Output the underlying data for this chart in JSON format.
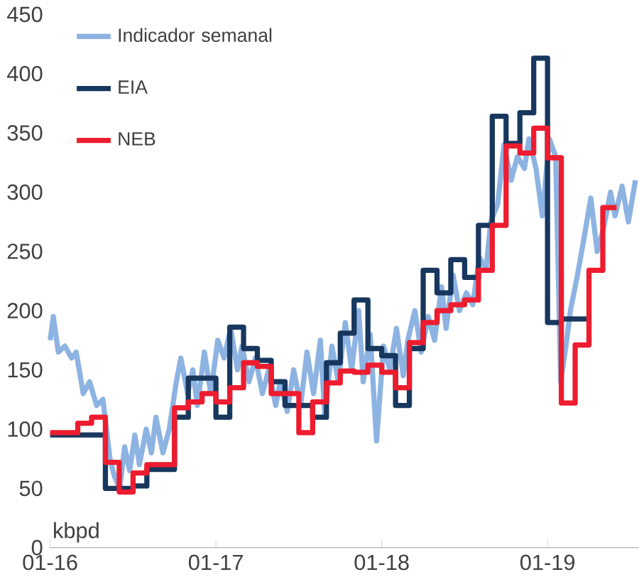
{
  "chart_data": {
    "type": "line",
    "ylim": [
      0,
      450
    ],
    "yticks": [
      0,
      50,
      100,
      150,
      200,
      250,
      300,
      350,
      400,
      450
    ],
    "xlim": [
      "2016-01-01",
      "2019-07-19"
    ],
    "xticks": [
      {
        "value": "2016-01",
        "label": "01-16"
      },
      {
        "value": "2017-01",
        "label": "01-17"
      },
      {
        "value": "2018-01",
        "label": "01-18"
      },
      {
        "value": "2019-01",
        "label": "01-19"
      }
    ],
    "legend": "top left",
    "annotations": [
      "kbpd"
    ],
    "series": [
      {
        "name": "Indicador semanal",
        "color": "#8db3e2",
        "x": [
          "2016-01-01",
          "2016-01-08",
          "2016-01-19",
          "2016-02-03",
          "2016-02-18",
          "2016-02-28",
          "2016-03-13",
          "2016-03-27",
          "2016-04-12",
          "2016-04-26",
          "2016-05-11",
          "2016-05-21",
          "2016-06-02",
          "2016-06-13",
          "2016-06-24",
          "2016-07-05",
          "2016-07-15",
          "2016-07-30",
          "2016-08-11",
          "2016-08-21",
          "2016-09-06",
          "2016-09-20",
          "2016-10-05",
          "2016-10-15",
          "2016-10-30",
          "2016-11-11",
          "2016-11-21",
          "2016-12-06",
          "2016-12-20",
          "2017-01-05",
          "2017-01-19",
          "2017-02-03",
          "2017-02-18",
          "2017-02-28",
          "2017-03-13",
          "2017-03-27",
          "2017-04-12",
          "2017-04-26",
          "2017-05-11",
          "2017-05-21",
          "2017-06-06",
          "2017-06-20",
          "2017-07-05",
          "2017-07-19",
          "2017-08-03",
          "2017-08-18",
          "2017-08-28",
          "2017-09-13",
          "2017-09-27",
          "2017-10-12",
          "2017-10-26",
          "2017-11-11",
          "2017-11-21",
          "2017-12-06",
          "2017-12-20",
          "2018-01-05",
          "2018-01-19",
          "2018-02-03",
          "2018-02-18",
          "2018-02-28",
          "2018-03-13",
          "2018-03-27",
          "2018-04-12",
          "2018-04-26",
          "2018-05-11",
          "2018-05-21",
          "2018-06-06",
          "2018-06-20",
          "2018-07-05",
          "2018-07-19",
          "2018-08-03",
          "2018-08-18",
          "2018-08-28",
          "2018-09-13",
          "2018-09-27",
          "2018-10-12",
          "2018-10-26",
          "2018-11-11",
          "2018-11-21",
          "2018-12-06",
          "2018-12-20",
          "2019-01-05",
          "2019-01-19",
          "2019-01-30",
          "2019-02-11",
          "2019-02-21",
          "2019-03-06",
          "2019-03-20",
          "2019-04-05",
          "2019-04-19",
          "2019-05-03",
          "2019-05-18",
          "2019-05-28",
          "2019-06-13",
          "2019-06-27",
          "2019-07-12"
        ],
        "values": [
          175,
          195,
          165,
          170,
          160,
          165,
          130,
          140,
          120,
          125,
          75,
          60,
          50,
          85,
          65,
          95,
          70,
          100,
          80,
          110,
          80,
          100,
          140,
          160,
          130,
          150,
          120,
          165,
          130,
          175,
          160,
          185,
          150,
          170,
          140,
          160,
          130,
          150,
          120,
          140,
          115,
          150,
          120,
          165,
          130,
          175,
          110,
          170,
          140,
          190,
          150,
          200,
          140,
          180,
          90,
          170,
          150,
          185,
          145,
          175,
          200,
          165,
          195,
          175,
          220,
          185,
          230,
          200,
          215,
          205,
          245,
          235,
          275,
          290,
          340,
          310,
          330,
          320,
          345,
          320,
          280,
          345,
          330,
          140,
          170,
          200,
          230,
          260,
          295,
          250,
          270,
          300,
          280,
          305,
          275,
          310
        ]
      },
      {
        "name": "EIA",
        "type": "step",
        "color": "#17375e",
        "x": [
          "2016-01",
          "2016-05",
          "2016-07",
          "2016-08",
          "2016-10",
          "2016-11",
          "2017-01",
          "2017-02",
          "2017-03",
          "2017-04",
          "2017-05",
          "2017-06",
          "2017-08",
          "2017-09",
          "2017-10",
          "2017-11",
          "2017-12",
          "2018-01",
          "2018-02",
          "2018-03",
          "2018-04",
          "2018-05",
          "2018-06",
          "2018-07",
          "2018-08",
          "2018-09",
          "2018-10",
          "2018-11",
          "2018-12",
          "2019-01",
          "2019-02",
          "2019-04"
        ],
        "values": [
          95,
          50,
          52,
          66,
          110,
          143,
          110,
          186,
          168,
          158,
          140,
          120,
          110,
          156,
          181,
          209,
          168,
          162,
          120,
          168,
          234,
          215,
          243,
          228,
          272,
          364,
          341,
          367,
          413,
          190,
          193,
          193
        ]
      },
      {
        "name": "NEB",
        "type": "step",
        "color": "#ed1c2e",
        "x": [
          "2016-01",
          "2016-03",
          "2016-04",
          "2016-05",
          "2016-06",
          "2016-07",
          "2016-08",
          "2016-10",
          "2016-11",
          "2016-12",
          "2017-01",
          "2017-02",
          "2017-03",
          "2017-04",
          "2017-05",
          "2017-07",
          "2017-08",
          "2017-09",
          "2017-10",
          "2017-11",
          "2017-12",
          "2018-01",
          "2018-02",
          "2018-03",
          "2018-04",
          "2018-05",
          "2018-06",
          "2018-07",
          "2018-08",
          "2018-09",
          "2018-10",
          "2018-11",
          "2018-12",
          "2019-01",
          "2019-02",
          "2019-03",
          "2019-04",
          "2019-05",
          "2019-06"
        ],
        "values": [
          97,
          105,
          110,
          72,
          47,
          63,
          70,
          118,
          123,
          130,
          123,
          135,
          156,
          153,
          130,
          97,
          123,
          139,
          149,
          148,
          154,
          148,
          135,
          173,
          190,
          200,
          205,
          209,
          234,
          272,
          339,
          333,
          354,
          329,
          122,
          171,
          234,
          287,
          287
        ]
      }
    ]
  }
}
